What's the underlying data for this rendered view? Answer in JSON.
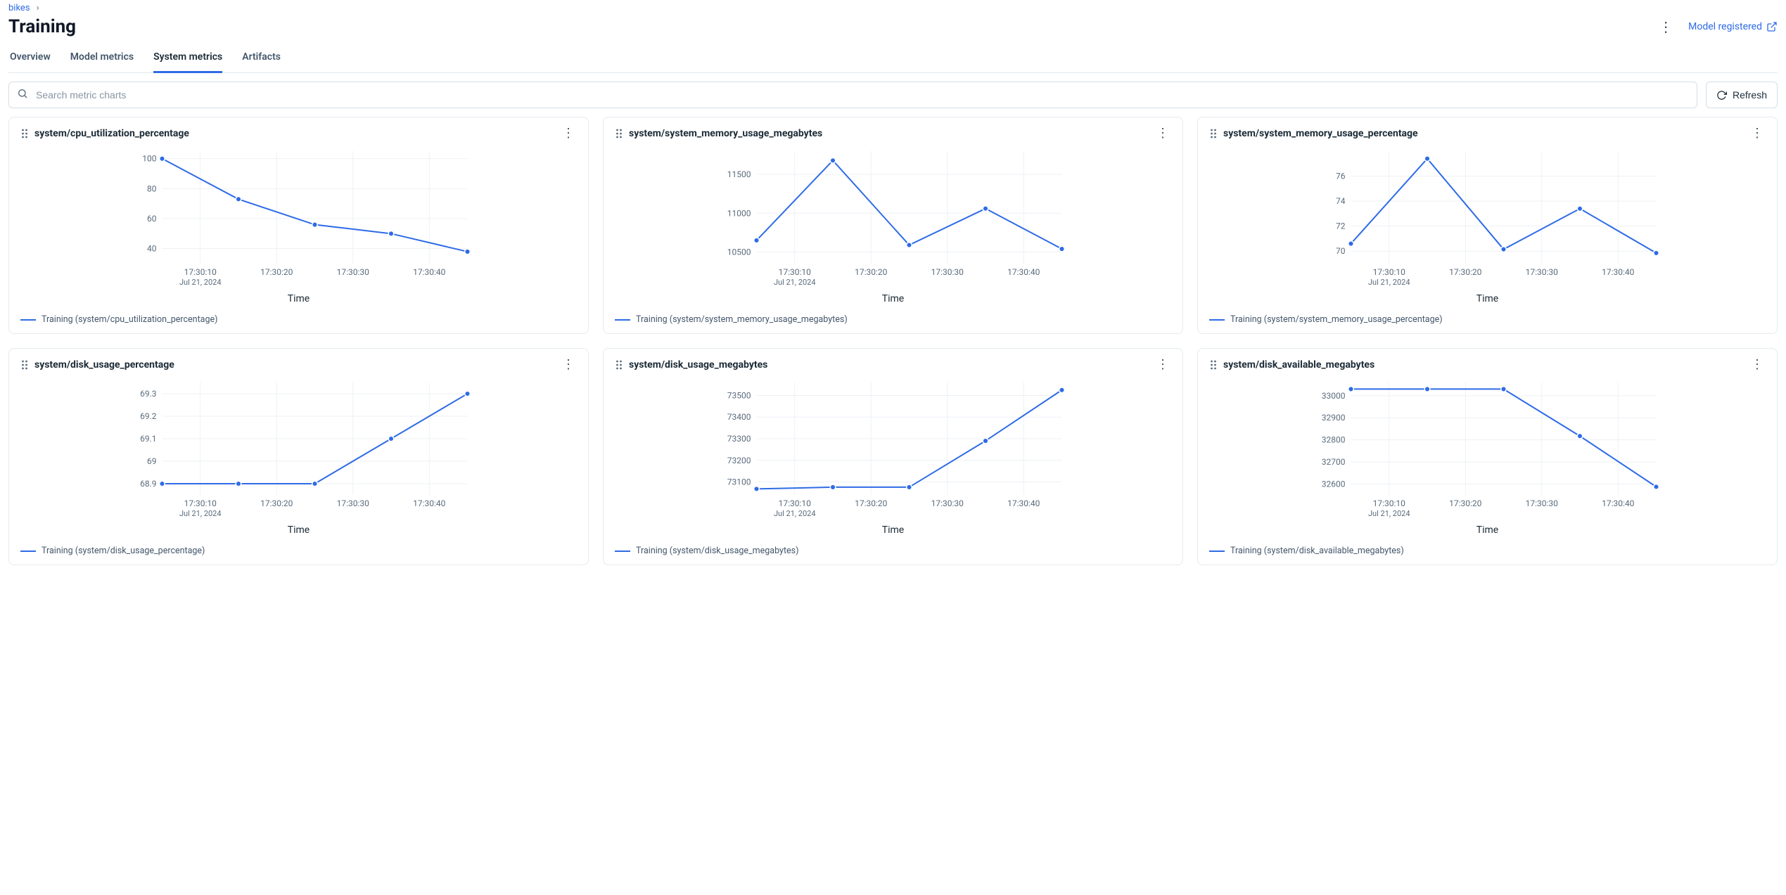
{
  "breadcrumb": {
    "parent": "bikes"
  },
  "page": {
    "title": "Training",
    "model_registered_label": "Model registered"
  },
  "tabs": [
    {
      "key": "overview",
      "label": "Overview",
      "active": false
    },
    {
      "key": "model-metrics",
      "label": "Model metrics",
      "active": false
    },
    {
      "key": "system-metrics",
      "label": "System metrics",
      "active": true
    },
    {
      "key": "artifacts",
      "label": "Artifacts",
      "active": false
    }
  ],
  "search": {
    "placeholder": "Search metric charts"
  },
  "refresh_label": "Refresh",
  "chart_common": {
    "x_labels": [
      "17:30:10",
      "17:30:20",
      "17:30:30",
      "17:30:40"
    ],
    "x_sublabel": "Jul 21, 2024",
    "x_axis_title": "Time",
    "line_color": "#2e6be6",
    "grid_color": "#edf1f5",
    "axis_color": "#5a6b7b",
    "bg_color": "#ffffff",
    "marker_radius": 3.8,
    "line_width": 2,
    "tick_font_size": 12
  },
  "charts": [
    {
      "id": "cpu-util",
      "title": "system/cpu_utilization_percentage",
      "legend": "Training (system/cpu_utilization_percentage)",
      "y_ticks": [
        40,
        60,
        80,
        100
      ],
      "y_min": 30,
      "y_max": 105,
      "x_positions": [
        0,
        1,
        2,
        3,
        4
      ],
      "values": [
        100,
        73,
        56,
        50,
        38
      ]
    },
    {
      "id": "mem-mb",
      "title": "system/system_memory_usage_megabytes",
      "legend": "Training (system/system_memory_usage_megabytes)",
      "y_ticks": [
        10500,
        11000,
        11500
      ],
      "y_min": 10350,
      "y_max": 11800,
      "x_positions": [
        0,
        1,
        2,
        3,
        4
      ],
      "values": [
        10650,
        11680,
        10590,
        11060,
        10540
      ]
    },
    {
      "id": "mem-pct",
      "title": "system/system_memory_usage_percentage",
      "legend": "Training (system/system_memory_usage_percentage)",
      "y_ticks": [
        70,
        72,
        74,
        76
      ],
      "y_min": 69,
      "y_max": 78,
      "x_positions": [
        0,
        1,
        2,
        3,
        4
      ],
      "values": [
        70.6,
        77.4,
        70.15,
        73.4,
        69.85
      ]
    },
    {
      "id": "disk-pct",
      "title": "system/disk_usage_percentage",
      "legend": "Training (system/disk_usage_percentage)",
      "y_ticks": [
        68.9,
        69,
        69.1,
        69.2,
        69.3
      ],
      "y_min": 68.85,
      "y_max": 69.35,
      "x_positions": [
        0,
        1,
        2,
        3,
        4
      ],
      "values": [
        68.9,
        68.9,
        68.9,
        69.1,
        69.3
      ]
    },
    {
      "id": "disk-mb",
      "title": "system/disk_usage_megabytes",
      "legend": "Training (system/disk_usage_megabytes)",
      "y_ticks": [
        73100,
        73200,
        73300,
        73400,
        73500
      ],
      "y_min": 73040,
      "y_max": 73560,
      "x_positions": [
        0,
        1,
        2,
        3,
        4
      ],
      "values": [
        73068,
        73076,
        73076,
        73290,
        73525
      ]
    },
    {
      "id": "disk-avail",
      "title": "system/disk_available_megabytes",
      "legend": "Training (system/disk_available_megabytes)",
      "y_ticks": [
        32600,
        32700,
        32800,
        32900,
        33000
      ],
      "y_min": 32550,
      "y_max": 33060,
      "x_positions": [
        0,
        1,
        2,
        3,
        4
      ],
      "values": [
        33030,
        33030,
        33030,
        32817,
        32587
      ]
    }
  ]
}
